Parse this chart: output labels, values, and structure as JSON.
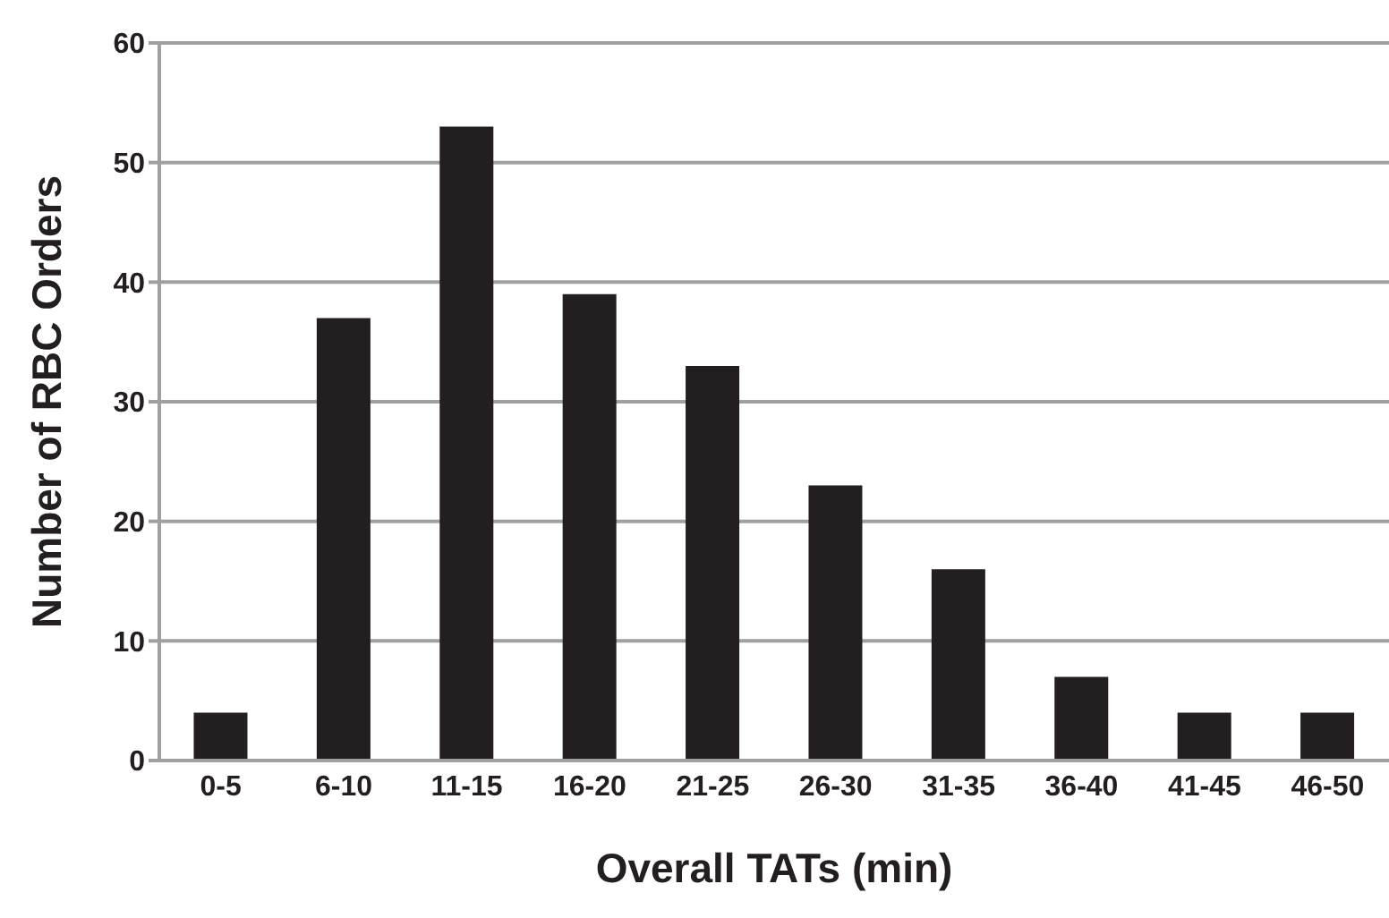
{
  "chart_data": {
    "type": "bar",
    "xlabel": "Overall TATs (min)",
    "ylabel": "Number of RBC Orders",
    "categories": [
      "0-5",
      "6-10",
      "11-15",
      "16-20",
      "21-25",
      "26-30",
      "31-35",
      "36-40",
      "41-45",
      "46-50"
    ],
    "values": [
      4,
      37,
      53,
      39,
      33,
      23,
      16,
      7,
      4,
      4
    ],
    "color": "#231f20",
    "ylim": [
      0,
      60
    ],
    "yticks": [
      0,
      10,
      20,
      30,
      40,
      50,
      60
    ],
    "grid": "y"
  }
}
